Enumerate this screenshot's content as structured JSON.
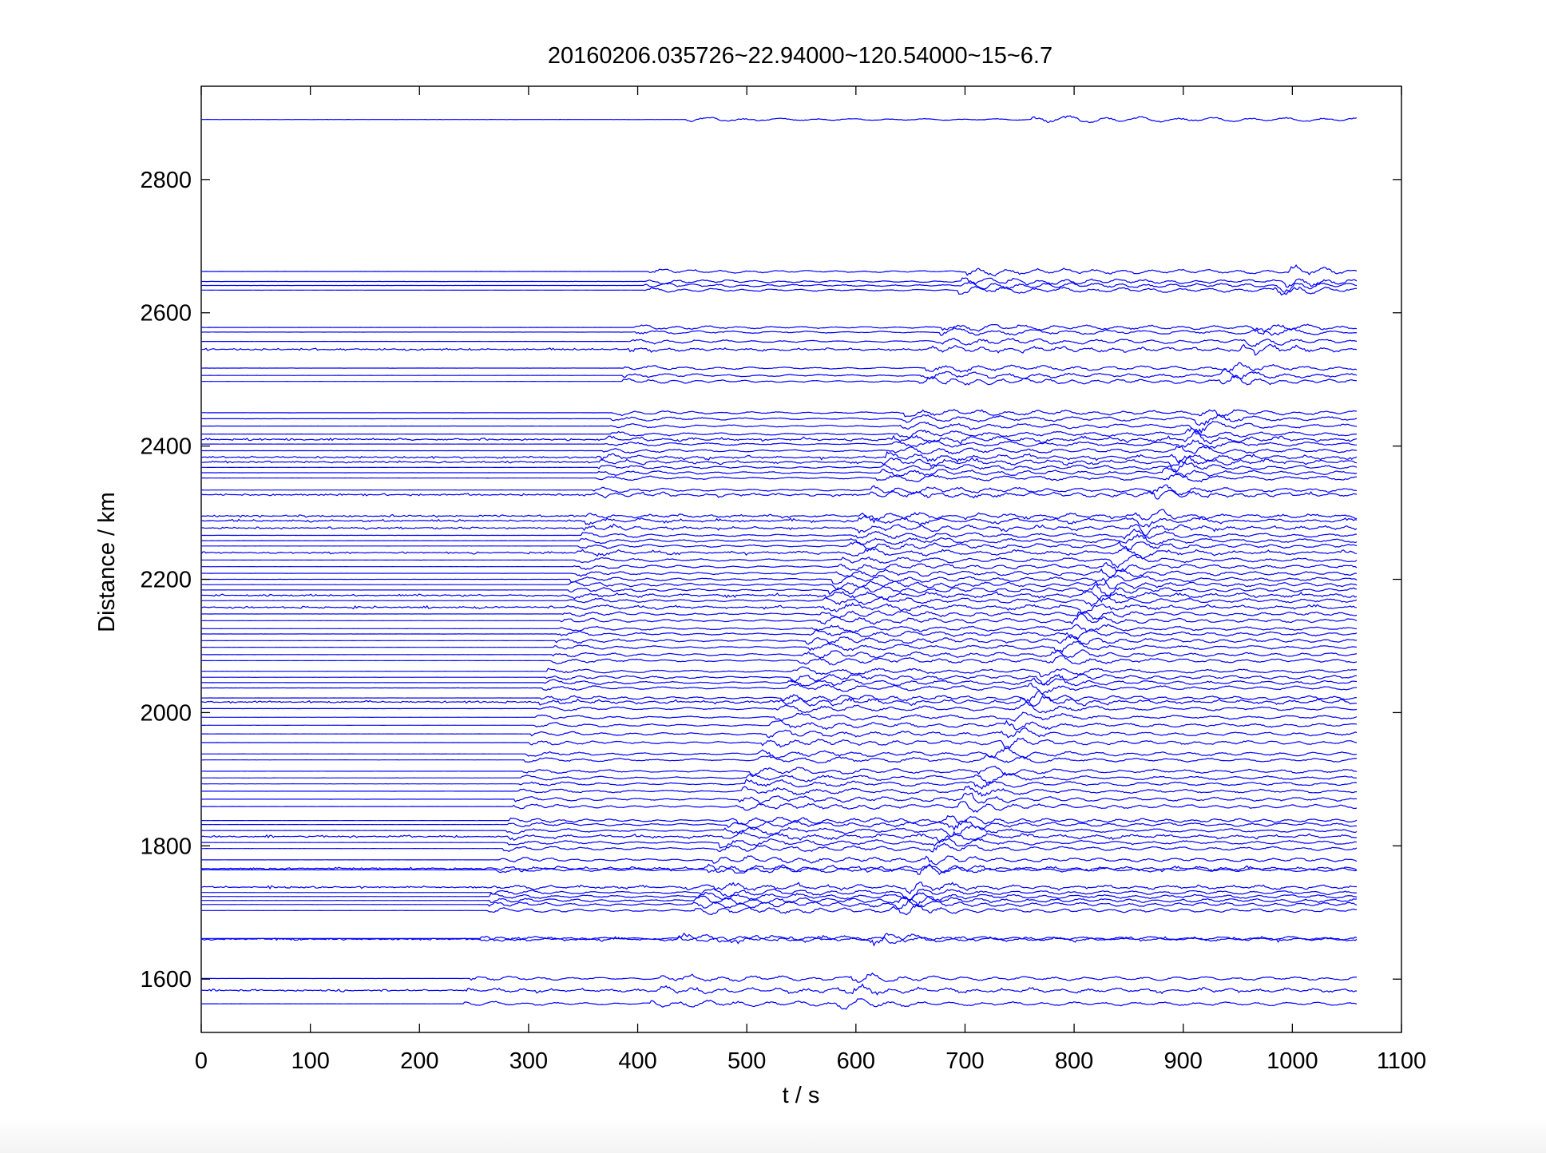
{
  "chart_data": {
    "type": "line",
    "title": "20160206.035726~22.94000~120.54000~15~6.7",
    "xlabel": "t / s",
    "ylabel": "Distance / km",
    "xlim": [
      0,
      1100
    ],
    "ylim": [
      1520,
      2940
    ],
    "xticks": [
      0,
      100,
      200,
      300,
      400,
      500,
      600,
      700,
      800,
      900,
      1000,
      1100
    ],
    "yticks": [
      1600,
      1800,
      2000,
      2200,
      2400,
      2600,
      2800
    ],
    "grid": false,
    "legend": "none",
    "series_color": "#0000ff",
    "trace_end_time": 1060,
    "p_arrival_velocity_km_s": 6.5,
    "s_arrival_velocity_km_s": 3.8,
    "surface_arrival_velocity_km_s": 2.65,
    "station_distances": [
      1563,
      1583,
      1601,
      1660,
      1661,
      1703,
      1712,
      1718,
      1724,
      1730,
      1738,
      1764,
      1766,
      1779,
      1796,
      1805,
      1814,
      1823,
      1832,
      1838,
      1859,
      1870,
      1882,
      1893,
      1902,
      1912,
      1929,
      1938,
      1955,
      1968,
      1981,
      1993,
      2006,
      2016,
      2022,
      2037,
      2045,
      2053,
      2062,
      2078,
      2087,
      2098,
      2108,
      2118,
      2126,
      2138,
      2148,
      2158,
      2168,
      2176,
      2184,
      2192,
      2200,
      2209,
      2219,
      2229,
      2240,
      2250,
      2258,
      2266,
      2277,
      2288,
      2295,
      2327,
      2334,
      2352,
      2360,
      2368,
      2376,
      2383,
      2393,
      2403,
      2410,
      2418,
      2430,
      2441,
      2450,
      2497,
      2506,
      2517,
      2545,
      2557,
      2571,
      2578,
      2634,
      2641,
      2647,
      2662,
      2890
    ]
  }
}
